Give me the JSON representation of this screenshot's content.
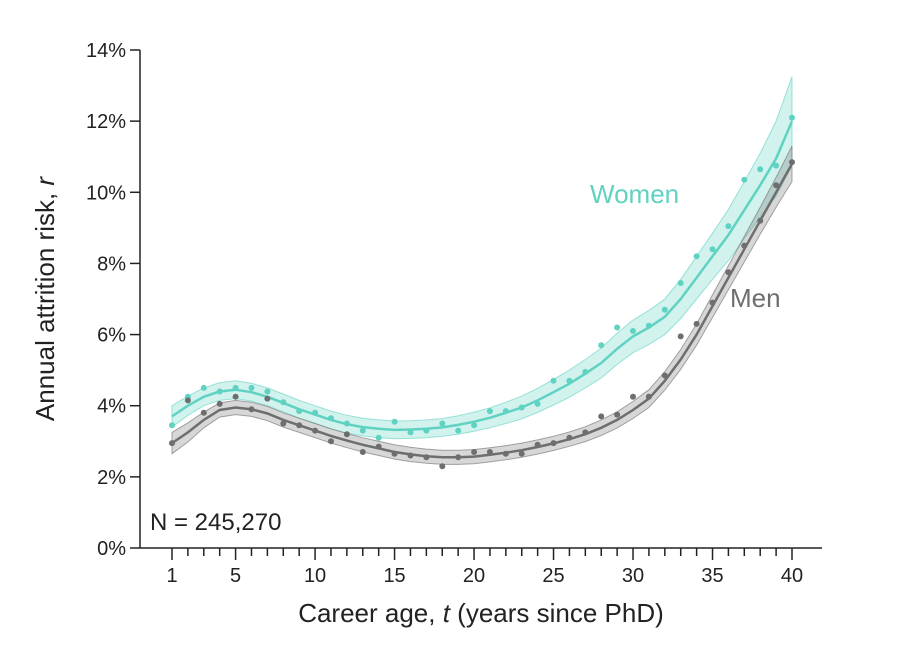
{
  "chart_data": {
    "type": "line",
    "xlabel": {
      "prefix": "Career age, ",
      "var": "t",
      "suffix": " (years since PhD)"
    },
    "ylabel": {
      "prefix": "Annual attrition risk, ",
      "var": "r"
    },
    "xlim": [
      0,
      41
    ],
    "ylim": [
      0,
      14
    ],
    "x_tick_labels": [
      1,
      5,
      10,
      15,
      20,
      25,
      30,
      35,
      40
    ],
    "y_ticks": [
      0,
      2,
      4,
      6,
      8,
      10,
      12,
      14
    ],
    "y_tick_suffix": "%",
    "grid": false,
    "legend": "inline labels",
    "annotation": "N = 245,270",
    "series": [
      {
        "name": "Women",
        "color": "#5fd2c2",
        "points": [
          3.45,
          4.25,
          4.5,
          4.4,
          4.5,
          4.5,
          4.4,
          4.1,
          3.85,
          3.8,
          3.65,
          3.5,
          3.3,
          3.1,
          3.55,
          3.25,
          3.3,
          3.5,
          3.3,
          3.45,
          3.85,
          3.85,
          3.95,
          4.05,
          4.7,
          4.7,
          4.95,
          5.7,
          6.2,
          6.1,
          6.25,
          6.7,
          7.45,
          8.2,
          8.4,
          9.05,
          10.35,
          10.65,
          10.75,
          12.1
        ],
        "fit": [
          3.7,
          4.0,
          4.25,
          4.4,
          4.45,
          4.38,
          4.25,
          4.08,
          3.9,
          3.75,
          3.6,
          3.48,
          3.4,
          3.35,
          3.32,
          3.33,
          3.35,
          3.39,
          3.46,
          3.55,
          3.66,
          3.8,
          3.95,
          4.15,
          4.38,
          4.62,
          4.9,
          5.2,
          5.6,
          5.95,
          6.2,
          6.5,
          7.0,
          7.6,
          8.2,
          8.8,
          9.5,
          10.2,
          10.95,
          12.0
        ],
        "band": [
          0.3,
          0.27,
          0.25,
          0.25,
          0.25,
          0.25,
          0.25,
          0.25,
          0.25,
          0.25,
          0.25,
          0.25,
          0.25,
          0.25,
          0.25,
          0.25,
          0.25,
          0.25,
          0.26,
          0.27,
          0.28,
          0.3,
          0.32,
          0.34,
          0.36,
          0.38,
          0.4,
          0.42,
          0.44,
          0.46,
          0.48,
          0.5,
          0.55,
          0.6,
          0.65,
          0.72,
          0.8,
          0.9,
          1.05,
          1.25
        ]
      },
      {
        "name": "Men",
        "color": "#6e6e6e",
        "points": [
          2.95,
          4.15,
          3.8,
          4.05,
          4.25,
          3.9,
          4.2,
          3.5,
          3.45,
          3.3,
          3.0,
          3.2,
          2.7,
          2.85,
          2.65,
          2.6,
          2.55,
          2.3,
          2.55,
          2.7,
          2.7,
          2.65,
          2.65,
          2.9,
          2.95,
          3.1,
          3.25,
          3.7,
          3.75,
          4.25,
          4.25,
          4.85,
          5.95,
          6.3,
          6.9,
          7.75,
          8.5,
          9.2,
          10.2,
          10.85
        ],
        "fit": [
          2.95,
          3.25,
          3.6,
          3.88,
          3.95,
          3.9,
          3.78,
          3.6,
          3.45,
          3.3,
          3.15,
          3.02,
          2.9,
          2.8,
          2.7,
          2.63,
          2.58,
          2.55,
          2.55,
          2.57,
          2.62,
          2.68,
          2.75,
          2.84,
          2.94,
          3.06,
          3.2,
          3.38,
          3.6,
          3.88,
          4.2,
          4.7,
          5.3,
          6.0,
          6.8,
          7.6,
          8.4,
          9.2,
          10.0,
          10.8
        ]
      }
    ]
  }
}
